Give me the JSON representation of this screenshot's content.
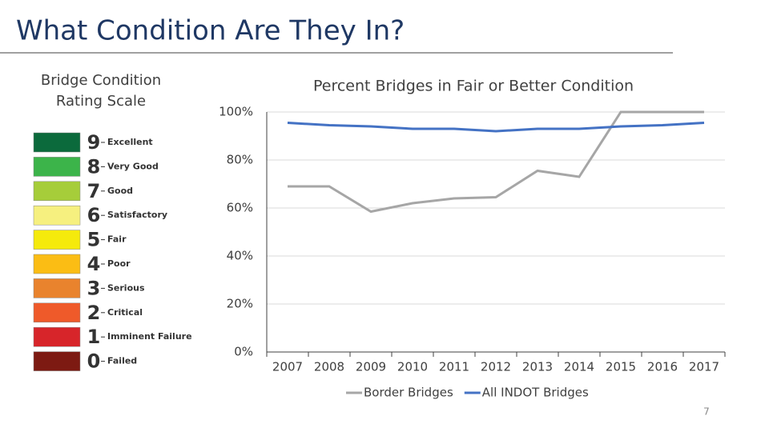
{
  "slide": {
    "title": "What Condition Are They In?",
    "page_number": "7"
  },
  "rating_scale": {
    "title_lines": [
      "Bridge Condition",
      "Rating Scale"
    ],
    "items": [
      {
        "number": 9,
        "label": "Excellent",
        "color": "#0b6a3c"
      },
      {
        "number": 8,
        "label": "Very Good",
        "color": "#3cb44a"
      },
      {
        "number": 7,
        "label": "Good",
        "color": "#a6cd3a"
      },
      {
        "number": 6,
        "label": "Satisfactory",
        "color": "#f6f07f"
      },
      {
        "number": 5,
        "label": "Fair",
        "color": "#f5ea0c"
      },
      {
        "number": 4,
        "label": "Poor",
        "color": "#fbbd14"
      },
      {
        "number": 3,
        "label": "Serious",
        "color": "#e9832d"
      },
      {
        "number": 2,
        "label": "Critical",
        "color": "#ef5a2a"
      },
      {
        "number": 1,
        "label": "Imminent Failure",
        "color": "#d7252a"
      },
      {
        "number": 0,
        "label": "Failed",
        "color": "#7d1a12"
      }
    ]
  },
  "chart_data": {
    "type": "line",
    "title": "Percent Bridges in Fair or Better Condition",
    "categories": [
      "2007",
      "2008",
      "2009",
      "2010",
      "2011",
      "2012",
      "2013",
      "2014",
      "2015",
      "2016",
      "2017"
    ],
    "series": [
      {
        "name": "Border Bridges",
        "color": "#a6a6a6",
        "values": [
          69,
          69,
          58.5,
          62,
          64,
          64.5,
          75.5,
          73,
          100,
          100,
          100
        ]
      },
      {
        "name": "All INDOT Bridges",
        "color": "#4472c4",
        "values": [
          95.5,
          94.5,
          94,
          93,
          93,
          92,
          93,
          93,
          94,
          94.5,
          95.5
        ]
      }
    ],
    "ylim": [
      0,
      100
    ],
    "yticks": [
      {
        "value": 0,
        "label": "0%"
      },
      {
        "value": 20,
        "label": "20%"
      },
      {
        "value": 40,
        "label": "40%"
      },
      {
        "value": 60,
        "label": "60%"
      },
      {
        "value": 80,
        "label": "80%"
      },
      {
        "value": 100,
        "label": "100%"
      }
    ],
    "grid": true,
    "legend": "bottom"
  }
}
